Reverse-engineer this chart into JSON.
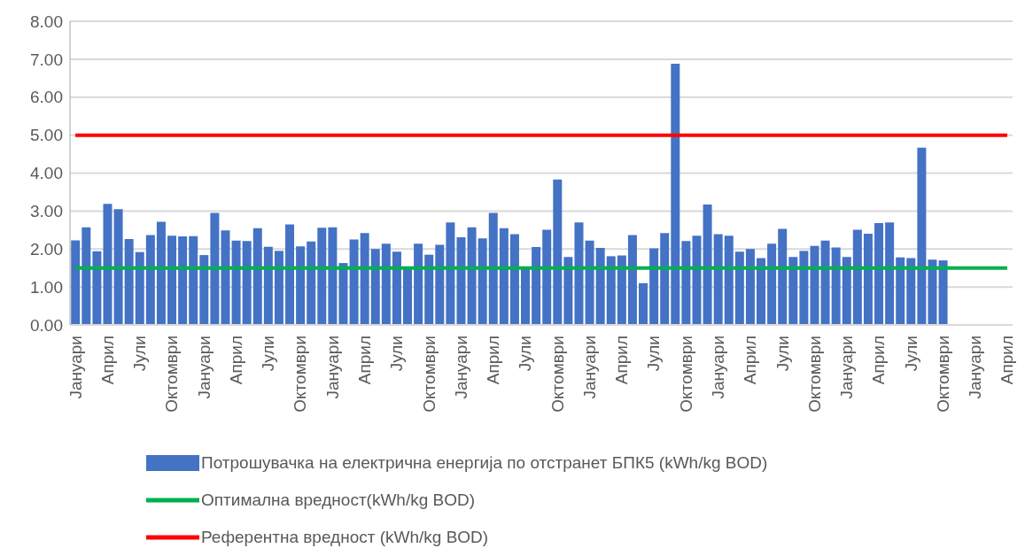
{
  "chart_data": {
    "type": "bar",
    "categories": [
      "Јануари",
      null,
      null,
      "Април",
      null,
      null,
      "Јули",
      null,
      null,
      "Октомври",
      null,
      null,
      "Јануари",
      null,
      null,
      "Април",
      null,
      null,
      "Јули",
      null,
      null,
      "Октомври",
      null,
      null,
      "Јануари",
      null,
      null,
      "Април",
      null,
      null,
      "Јули",
      null,
      null,
      "Октомври",
      null,
      null,
      "Јануари",
      null,
      null,
      "Април",
      null,
      null,
      "Јули",
      null,
      null,
      "Октомври",
      null,
      null,
      "Јануари",
      null,
      null,
      "Април",
      null,
      null,
      "Јули",
      null,
      null,
      "Октомври",
      null,
      null,
      "Јануари",
      null,
      null,
      "Април",
      null,
      null,
      "Јули",
      null,
      null,
      "Октомври",
      null,
      null,
      "Јануари",
      null,
      null,
      "Април",
      null,
      null,
      "Јули",
      null,
      null,
      "Октомври",
      null,
      null,
      "Јануари",
      null,
      null,
      "Април"
    ],
    "series": [
      {
        "name": "Потрошувачка на електрична енергија по отстранет БПК5 (kWh/kg BOD)",
        "color": "#4472c4",
        "values": [
          2.23,
          2.57,
          1.94,
          3.19,
          3.05,
          2.26,
          1.92,
          2.37,
          2.72,
          2.35,
          2.33,
          2.34,
          1.84,
          2.95,
          2.49,
          2.22,
          2.21,
          2.55,
          2.06,
          1.95,
          2.65,
          2.07,
          2.2,
          2.56,
          2.57,
          1.63,
          2.25,
          2.42,
          2.0,
          2.14,
          1.93,
          1.5,
          2.14,
          1.85,
          2.11,
          2.7,
          2.31,
          2.57,
          2.28,
          2.95,
          2.55,
          2.39,
          1.5,
          2.05,
          2.51,
          3.83,
          1.79,
          2.7,
          2.22,
          2.03,
          1.81,
          1.83,
          2.37,
          1.1,
          2.02,
          2.42,
          6.88,
          2.21,
          2.35,
          3.17,
          2.39,
          2.35,
          1.93,
          2.0,
          1.76,
          2.14,
          2.53,
          1.79,
          1.95,
          2.08,
          2.22,
          2.04,
          1.79,
          2.51,
          2.4,
          2.68,
          2.7,
          1.78,
          1.76,
          4.67,
          1.72,
          1.7,
          null,
          null,
          null,
          null,
          null,
          null
        ]
      },
      {
        "name": "Оптимална вредност(kWh/kg BOD)",
        "type": "line",
        "color": "#00b050",
        "values": [
          1.5,
          1.5,
          1.5,
          1.5,
          1.5,
          1.5,
          1.5,
          1.5,
          1.5,
          1.5,
          1.5,
          1.5,
          1.5,
          1.5,
          1.5,
          1.5,
          1.5,
          1.5,
          1.5,
          1.5,
          1.5,
          1.5,
          1.5,
          1.5,
          1.5,
          1.5,
          1.5,
          1.5,
          1.5,
          1.5,
          1.5,
          1.5,
          1.5,
          1.5,
          1.5,
          1.5,
          1.5,
          1.5,
          1.5,
          1.5,
          1.5,
          1.5,
          1.5,
          1.5,
          1.5,
          1.5,
          1.5,
          1.5,
          1.5,
          1.5,
          1.5,
          1.5,
          1.5,
          1.5,
          1.5,
          1.5,
          1.5,
          1.5,
          1.5,
          1.5,
          1.5,
          1.5,
          1.5,
          1.5,
          1.5,
          1.5,
          1.5,
          1.5,
          1.5,
          1.5,
          1.5,
          1.5,
          1.5,
          1.5,
          1.5,
          1.5,
          1.5,
          1.5,
          1.5,
          1.5,
          1.5,
          1.5,
          1.5,
          1.5,
          1.5,
          1.5,
          1.5,
          1.5
        ]
      },
      {
        "name": "Референтна вредност (kWh/kg BOD)",
        "type": "line",
        "color": "#ff0000",
        "values": [
          5,
          5,
          5,
          5,
          5,
          5,
          5,
          5,
          5,
          5,
          5,
          5,
          5,
          5,
          5,
          5,
          5,
          5,
          5,
          5,
          5,
          5,
          5,
          5,
          5,
          5,
          5,
          5,
          5,
          5,
          5,
          5,
          5,
          5,
          5,
          5,
          5,
          5,
          5,
          5,
          5,
          5,
          5,
          5,
          5,
          5,
          5,
          5,
          5,
          5,
          5,
          5,
          5,
          5,
          5,
          5,
          5,
          5,
          5,
          5,
          5,
          5,
          5,
          5,
          5,
          5,
          5,
          5,
          5,
          5,
          5,
          5,
          5,
          5,
          5,
          5,
          5,
          5,
          5,
          5,
          5,
          5,
          5,
          5,
          5,
          5,
          5,
          5
        ]
      }
    ],
    "ylim": [
      0,
      8
    ],
    "yticks": [
      {
        "value": 0,
        "label": "0.00"
      },
      {
        "value": 1,
        "label": "1.00"
      },
      {
        "value": 2,
        "label": "2.00"
      },
      {
        "value": 3,
        "label": "3.00"
      },
      {
        "value": 4,
        "label": "4.00"
      },
      {
        "value": 5,
        "label": "5.00"
      },
      {
        "value": 6,
        "label": "6.00"
      },
      {
        "value": 7,
        "label": "7.00"
      },
      {
        "value": 8,
        "label": "8.00"
      }
    ],
    "grid": "y",
    "legend": "bottom"
  }
}
